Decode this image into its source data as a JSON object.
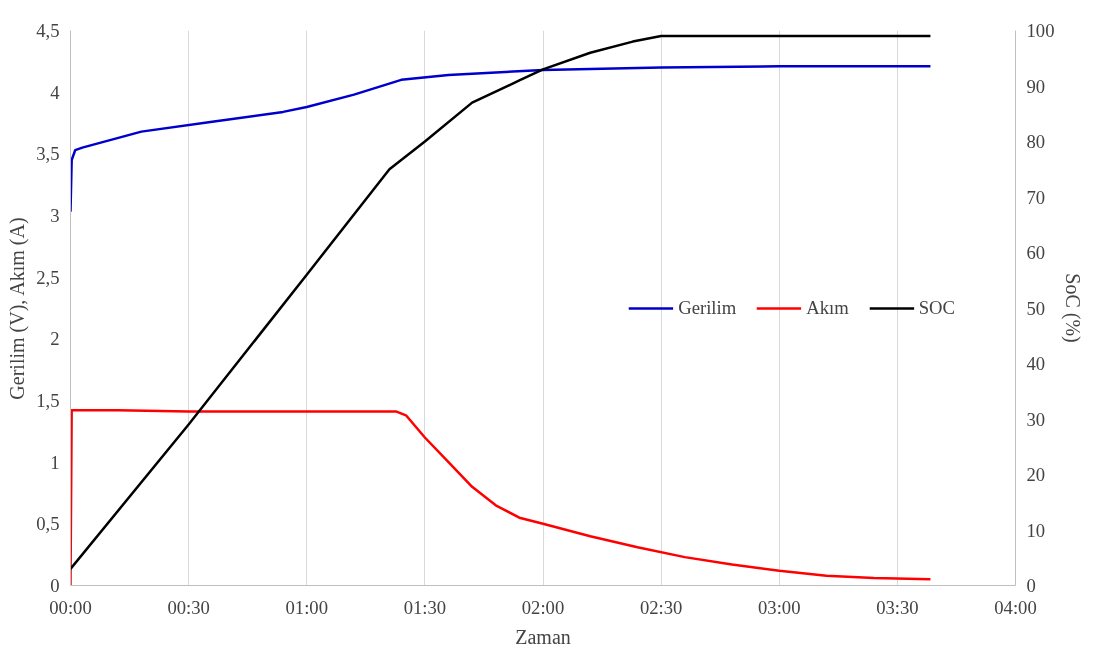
{
  "chart_data": {
    "type": "line",
    "xlabel": "Zaman",
    "ylabel": "Gerilim (V), Akım (A)",
    "y2label": "SoC (%)",
    "xlim": [
      0,
      4
    ],
    "xticks": [
      {
        "value": 0,
        "label": "00:00"
      },
      {
        "value": 0.5,
        "label": "00:30"
      },
      {
        "value": 1,
        "label": "01:00"
      },
      {
        "value": 1.5,
        "label": "01:30"
      },
      {
        "value": 2,
        "label": "02:00"
      },
      {
        "value": 2.5,
        "label": "02:30"
      },
      {
        "value": 3,
        "label": "03:00"
      },
      {
        "value": 3.5,
        "label": "03:30"
      },
      {
        "value": 4,
        "label": "04:00"
      }
    ],
    "ylim": [
      0,
      4.5
    ],
    "yticks": [
      0,
      {
        "value": 0.5,
        "label": "0,5"
      },
      1,
      {
        "value": 1.5,
        "label": "1,5"
      },
      2,
      {
        "value": 2.5,
        "label": "2,5"
      },
      3,
      {
        "value": 3.5,
        "label": "3,5"
      },
      4,
      {
        "value": 4.5,
        "label": "4,5"
      }
    ],
    "y2lim": [
      0,
      100
    ],
    "y2ticks": [
      0,
      10,
      20,
      30,
      40,
      50,
      60,
      70,
      80,
      90,
      100
    ],
    "grid": "x",
    "legend": "right",
    "line_style": "solid",
    "marker": "none",
    "series": [
      {
        "name": "Gerilim",
        "color": "#0000cc",
        "x": [
          0,
          0.005,
          0.02,
          0.05,
          0.3,
          0.6,
          0.9,
          1.0,
          1.2,
          1.4,
          1.6,
          1.8,
          2.0,
          2.5,
          3.0,
          3.64
        ],
        "values": [
          3.03,
          3.45,
          3.53,
          3.55,
          3.68,
          3.76,
          3.84,
          3.88,
          3.98,
          4.1,
          4.14,
          4.16,
          4.18,
          4.2,
          4.21,
          4.21
        ]
      },
      {
        "name": "Akım",
        "color": "#ff0000",
        "x": [
          0,
          0.005,
          0.2,
          0.5,
          1.0,
          1.38,
          1.42,
          1.5,
          1.6,
          1.7,
          1.8,
          1.9,
          2.0,
          2.2,
          2.4,
          2.6,
          2.8,
          3.0,
          3.2,
          3.4,
          3.64
        ],
        "values": [
          0,
          1.42,
          1.42,
          1.41,
          1.41,
          1.41,
          1.38,
          1.2,
          1.0,
          0.8,
          0.65,
          0.55,
          0.5,
          0.4,
          0.31,
          0.23,
          0.17,
          0.12,
          0.08,
          0.06,
          0.05
        ]
      },
      {
        "name": "SOC",
        "color": "#000000",
        "axis": "y2",
        "x": [
          0,
          0.5,
          1.0,
          1.35,
          1.5,
          1.7,
          1.9,
          2.0,
          2.2,
          2.38,
          2.5,
          3.64
        ],
        "values": [
          3,
          29,
          56,
          75,
          80,
          87,
          91,
          93,
          96,
          98,
          99,
          99
        ]
      }
    ]
  }
}
